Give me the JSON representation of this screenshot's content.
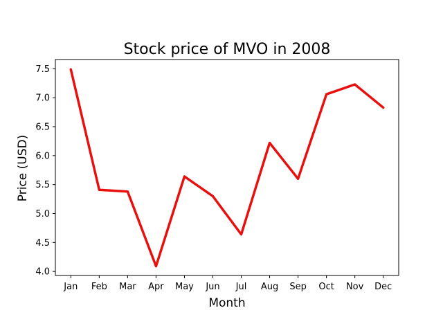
{
  "chart_data": {
    "type": "line",
    "title": "Stock price of MVO in 2008",
    "xlabel": "Month",
    "ylabel": "Price (USD)",
    "categories": [
      "Jan",
      "Feb",
      "Mar",
      "Apr",
      "May",
      "Jun",
      "Jul",
      "Aug",
      "Sep",
      "Oct",
      "Nov",
      "Dec"
    ],
    "series": [
      {
        "values": [
          7.49,
          5.41,
          5.38,
          4.09,
          5.64,
          5.3,
          4.64,
          6.22,
          5.6,
          7.06,
          7.23,
          6.83
        ],
        "color": "#e8100f"
      }
    ],
    "ylim": [
      3.93,
      7.66
    ],
    "yticks": [
      4.0,
      4.5,
      5.0,
      5.5,
      6.0,
      6.5,
      7.0,
      7.5
    ],
    "ytick_labels": [
      "4.0",
      "4.5",
      "5.0",
      "5.5",
      "6.0",
      "6.5",
      "7.0",
      "7.5"
    ],
    "grid": false,
    "legend": false
  }
}
